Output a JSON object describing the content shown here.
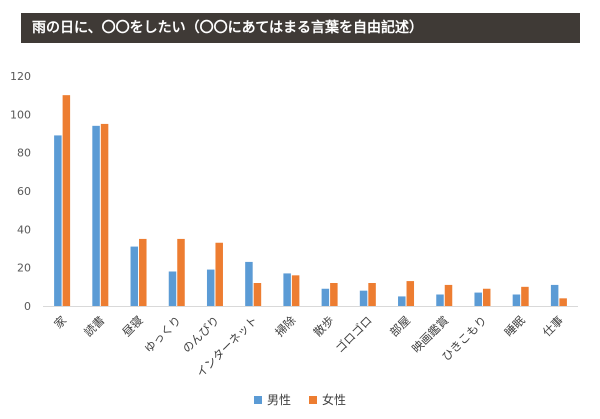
{
  "title": "雨の日に、〇〇をしたい（〇〇にあてはまる言葉を自由記述）",
  "chart_data": {
    "type": "bar",
    "categories": [
      "家",
      "読書",
      "昼寝",
      "ゆっくり",
      "のんびり",
      "インターネット",
      "掃除",
      "散歩",
      "ゴロゴロ",
      "部屋",
      "映画鑑賞",
      "ひきこもり",
      "睡眠",
      "仕事"
    ],
    "series": [
      {
        "name": "男性",
        "color": "#5b9bd5",
        "values": [
          89,
          94,
          31,
          18,
          19,
          23,
          17,
          9,
          8,
          5,
          6,
          7,
          6,
          11
        ]
      },
      {
        "name": "女性",
        "color": "#ed7d31",
        "values": [
          110,
          95,
          35,
          35,
          33,
          12,
          16,
          12,
          12,
          13,
          11,
          9,
          10,
          4
        ]
      }
    ],
    "ylim": [
      0,
      120
    ],
    "yticks": [
      0,
      20,
      40,
      60,
      80,
      100,
      120
    ],
    "xlabel": "",
    "ylabel": "",
    "grid": false,
    "legend_position": "bottom"
  }
}
